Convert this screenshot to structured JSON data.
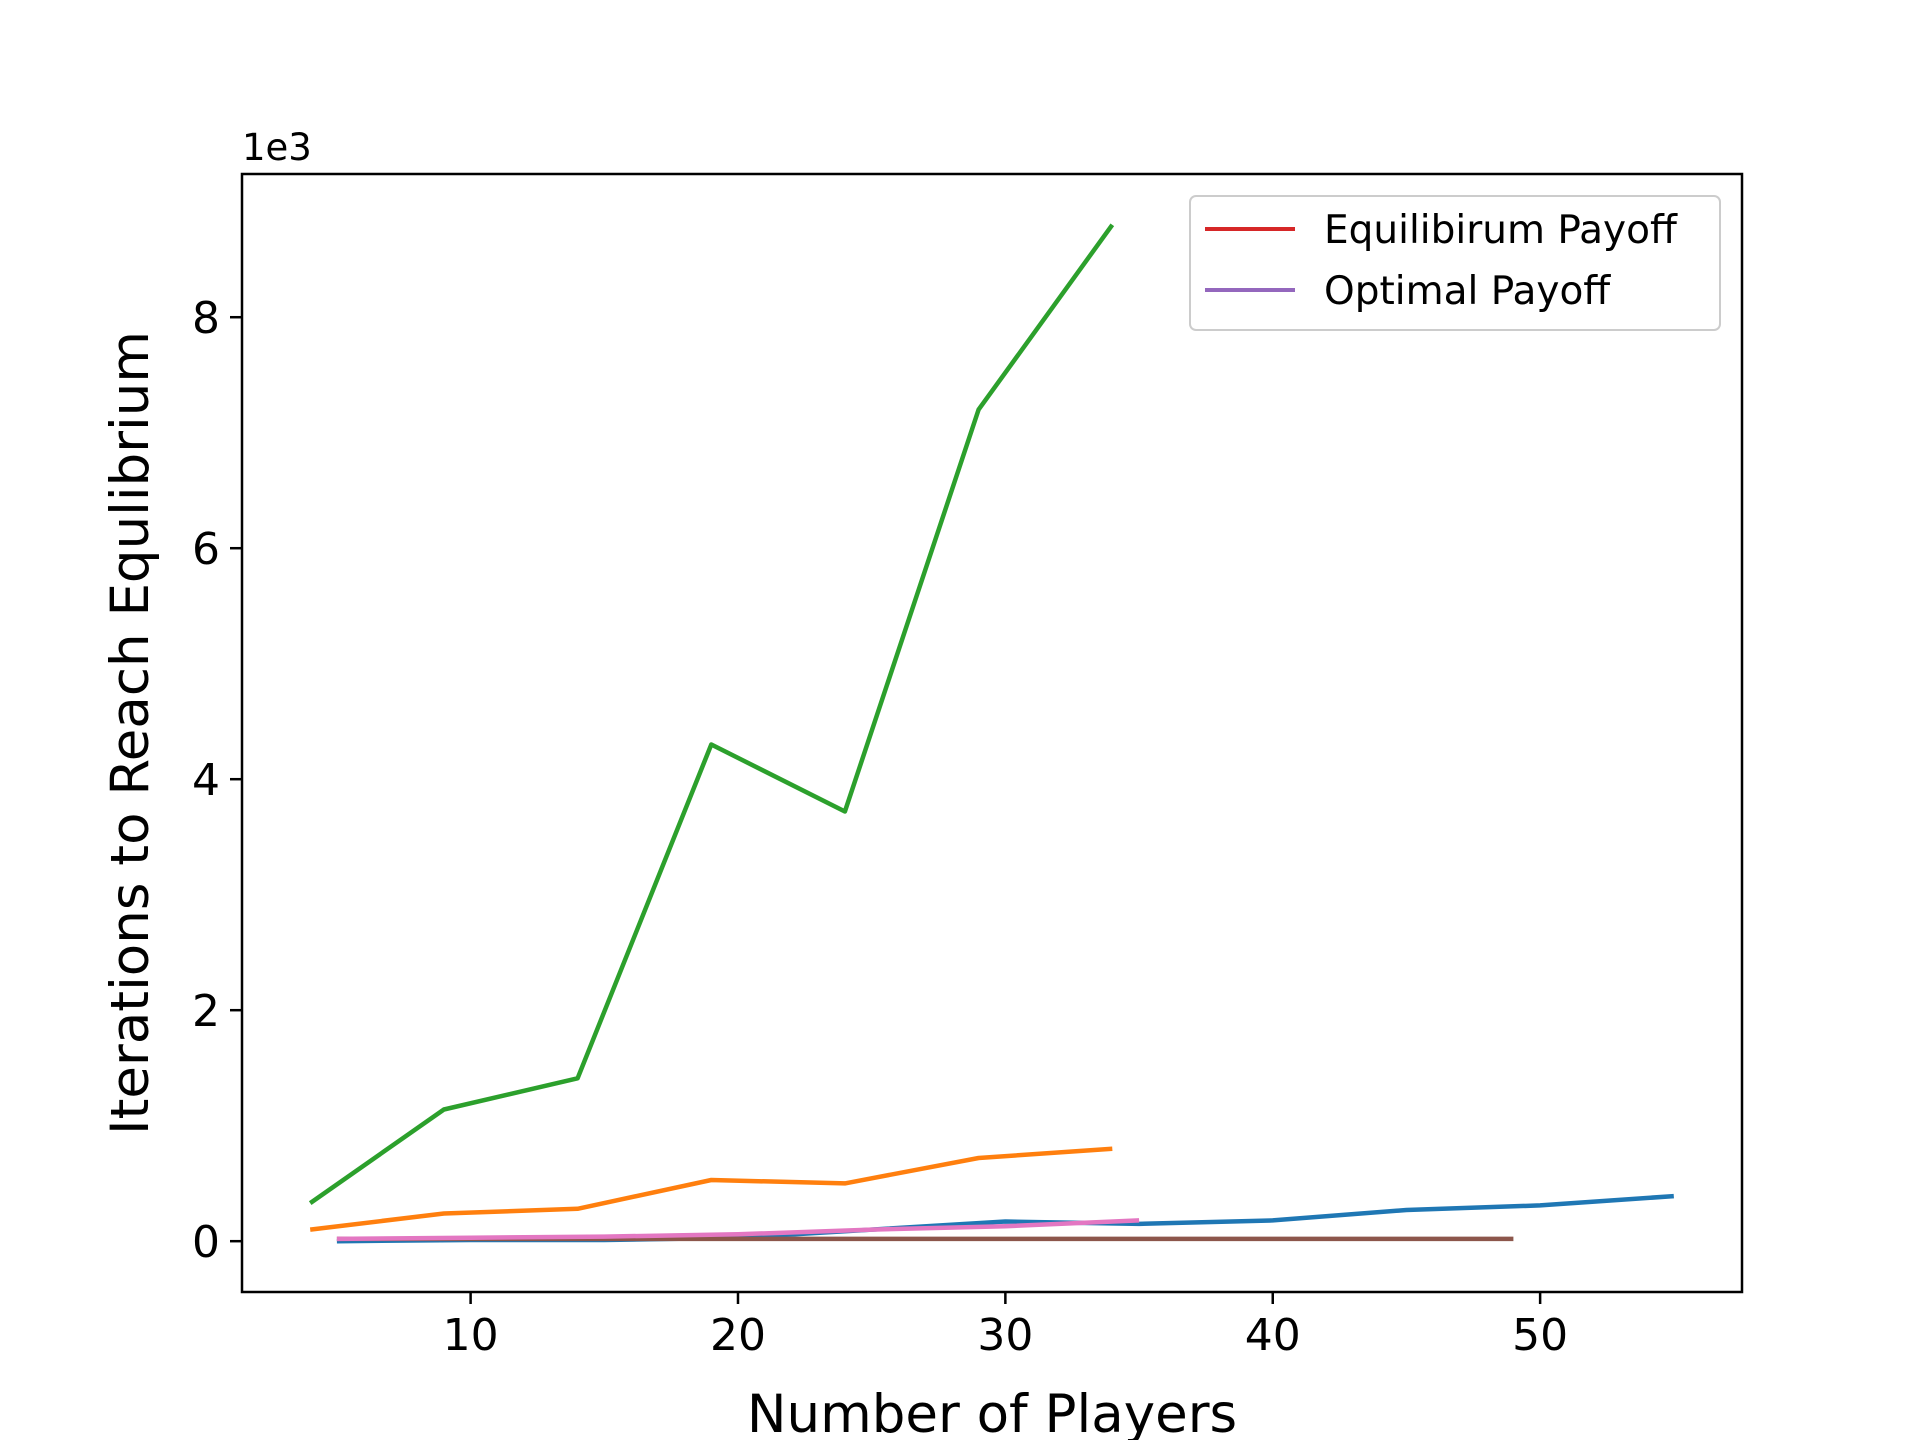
{
  "chart_data": {
    "type": "line",
    "title": "",
    "xlabel": "Number of Players",
    "ylabel": "Iterations to Reach Equlibrium",
    "y_offset_label": "1e3",
    "xlim": [
      1.45,
      57.55
    ],
    "ylim": [
      -0.44,
      9.24
    ],
    "xticks": [
      10,
      20,
      30,
      40,
      50
    ],
    "yticks": [
      0,
      2,
      4,
      6,
      8
    ],
    "grid": false,
    "legend_placement": "top-right",
    "legend": [
      {
        "label": "Equilibirum Payoff",
        "color": "#d62728"
      },
      {
        "label": "Optimal Payoff",
        "color": "#9467bd"
      }
    ],
    "series": [
      {
        "color": "#1f77b4",
        "x": [
          5,
          10,
          15,
          20,
          25,
          30,
          35,
          40,
          45,
          50,
          55
        ],
        "y": [
          0.0,
          0.01,
          0.01,
          0.03,
          0.1,
          0.17,
          0.15,
          0.18,
          0.27,
          0.31,
          0.39
        ]
      },
      {
        "color": "#ff7f0e",
        "x": [
          4,
          9,
          14,
          19,
          24,
          29,
          34
        ],
        "y": [
          0.1,
          0.24,
          0.28,
          0.53,
          0.5,
          0.72,
          0.8
        ]
      },
      {
        "color": "#2ca02c",
        "x": [
          4,
          9,
          14,
          19,
          24,
          29,
          34
        ],
        "y": [
          0.33,
          1.14,
          1.41,
          4.3,
          3.72,
          7.2,
          8.8
        ]
      },
      {
        "color": "#8c564b",
        "x": [
          5,
          10,
          15,
          20,
          25,
          30,
          35,
          40,
          45,
          49
        ],
        "y": [
          0.02,
          0.02,
          0.02,
          0.02,
          0.02,
          0.02,
          0.02,
          0.02,
          0.02,
          0.02
        ]
      },
      {
        "color": "#e377c2",
        "x": [
          5,
          10,
          15,
          20,
          25,
          30,
          35
        ],
        "y": [
          0.02,
          0.03,
          0.04,
          0.06,
          0.1,
          0.13,
          0.18
        ]
      }
    ]
  }
}
